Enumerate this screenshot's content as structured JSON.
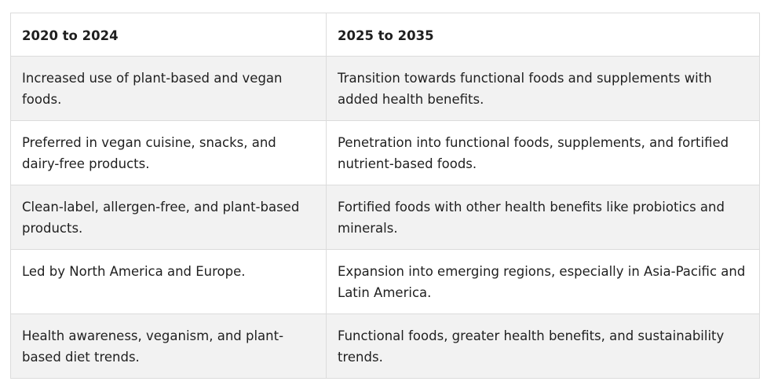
{
  "table": {
    "headers": [
      "2020 to 2024",
      "2025 to 2035"
    ],
    "rows": [
      [
        "Increased use of plant-based and vegan foods.",
        "Transition towards functional foods and supplements with added health benefits."
      ],
      [
        "Preferred in vegan cuisine, snacks, and dairy-free products.",
        "Penetration into functional foods, supplements, and fortified nutrient-based foods."
      ],
      [
        "Clean-label, allergen-free, and plant-based products.",
        "Fortified foods with other health benefits like probiotics and minerals."
      ],
      [
        "Led by North America and Europe.",
        "Expansion into emerging regions, especially in Asia-Pacific and Latin America."
      ],
      [
        "Health awareness, veganism, and plant-based diet trends.",
        "Functional foods, greater health benefits, and sustainability trends."
      ]
    ]
  }
}
